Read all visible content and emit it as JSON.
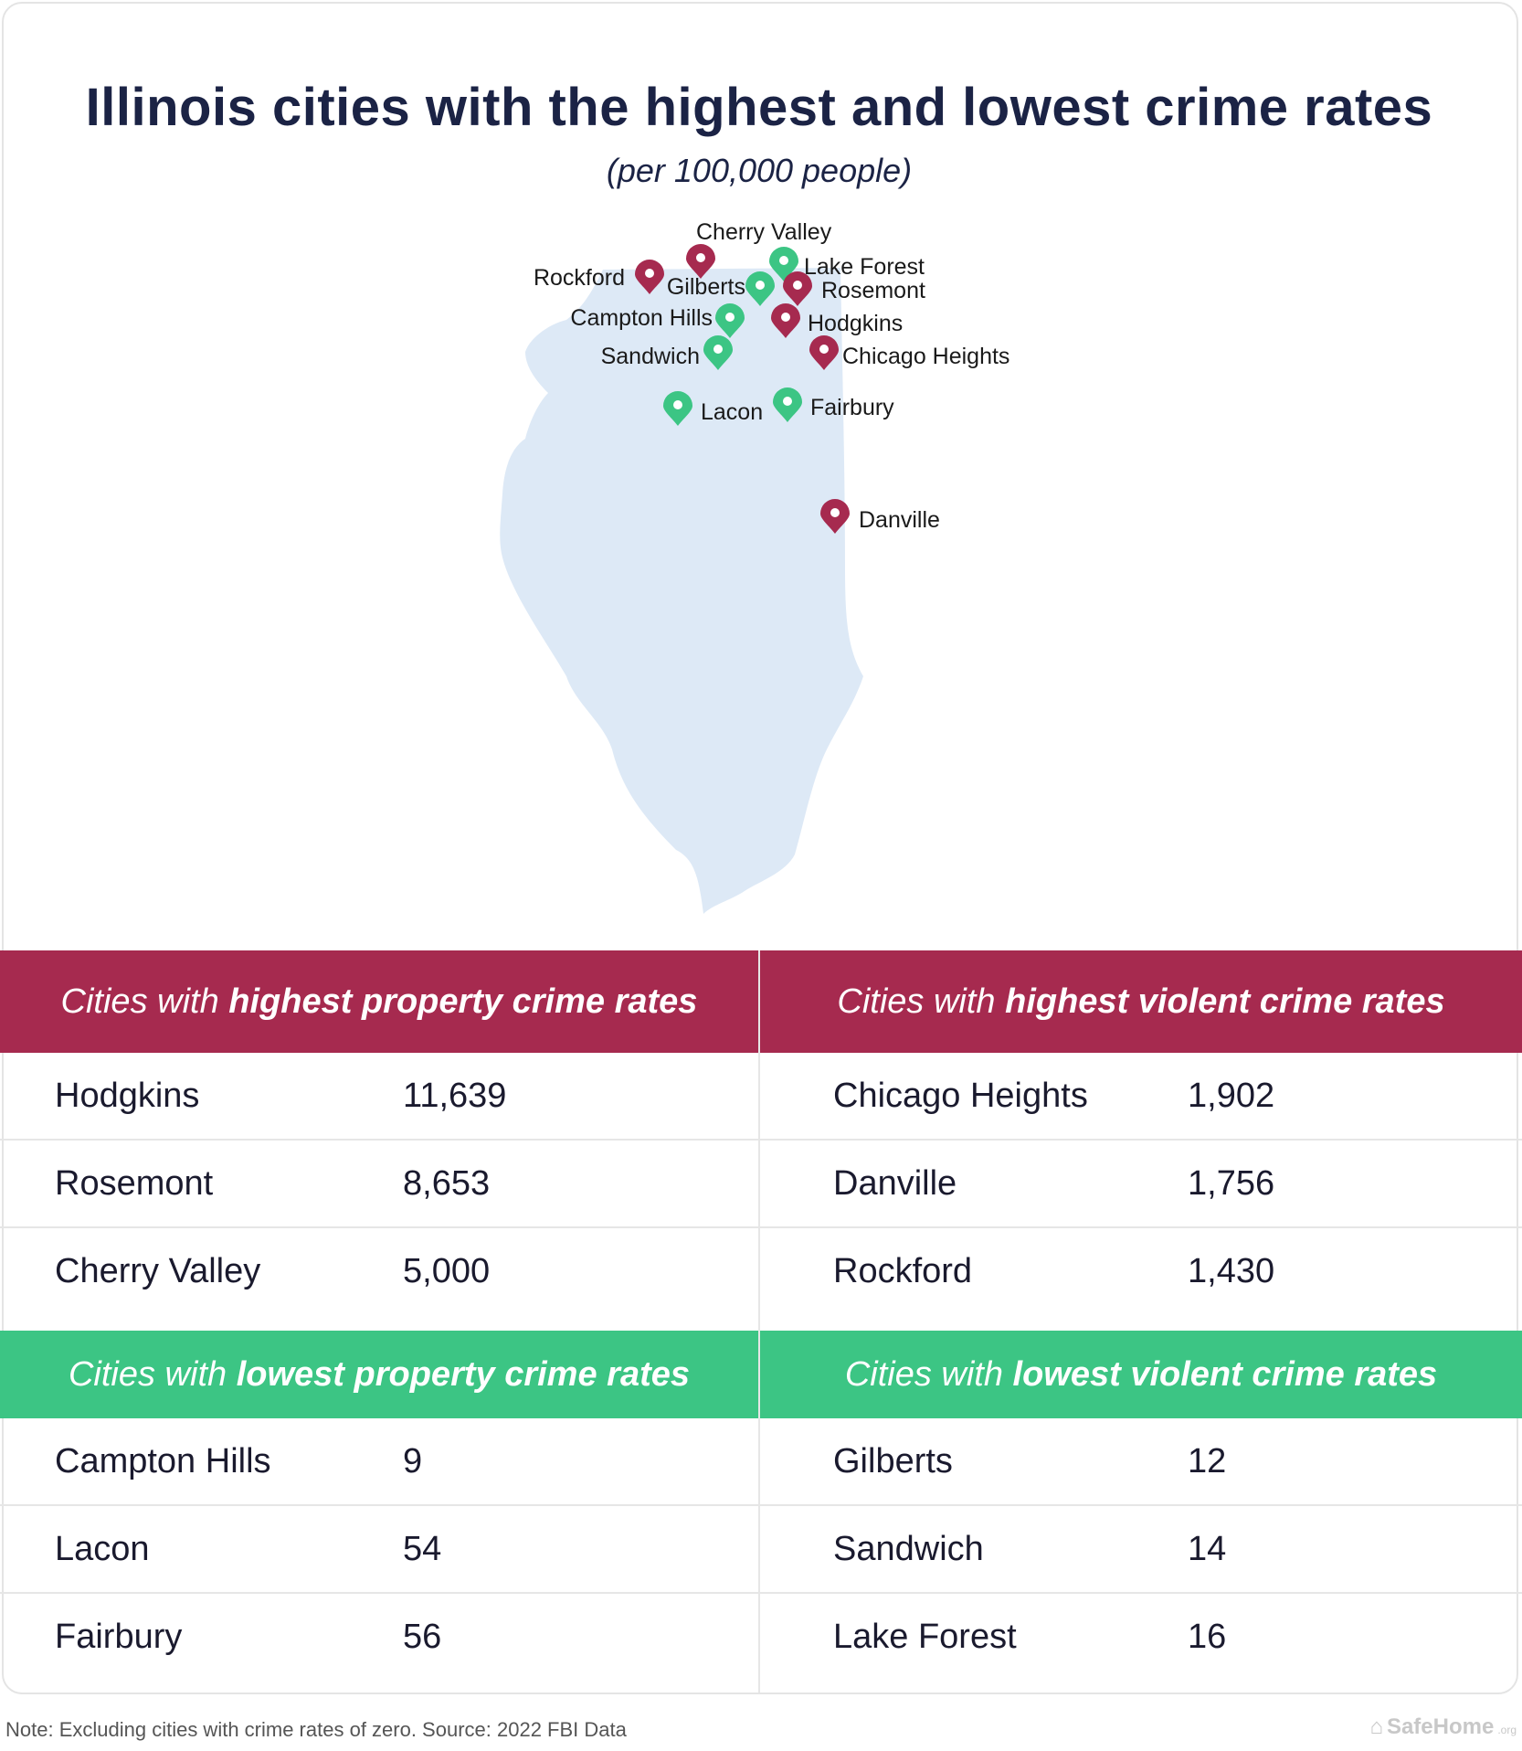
{
  "title": "Illinois cities with the highest and lowest crime rates",
  "subtitle": "(per 100,000 people)",
  "colors": {
    "high": "#a62a4f",
    "low": "#3cc584",
    "state": "#dde9f6"
  },
  "map": {
    "pins": [
      {
        "name": "Cherry Valley",
        "type": "high"
      },
      {
        "name": "Rockford",
        "type": "high"
      },
      {
        "name": "Lake Forest",
        "type": "low"
      },
      {
        "name": "Gilberts",
        "type": "low"
      },
      {
        "name": "Rosemont",
        "type": "high"
      },
      {
        "name": "Campton Hills",
        "type": "low"
      },
      {
        "name": "Hodgkins",
        "type": "high"
      },
      {
        "name": "Sandwich",
        "type": "low"
      },
      {
        "name": "Chicago Heights",
        "type": "high"
      },
      {
        "name": "Lacon",
        "type": "low"
      },
      {
        "name": "Fairbury",
        "type": "low"
      },
      {
        "name": "Danville",
        "type": "high"
      }
    ]
  },
  "tables": {
    "high_property": {
      "header_pre": "Cities with ",
      "header_bold": "highest property crime rates",
      "rows": [
        {
          "city": "Hodgkins",
          "value": "11,639"
        },
        {
          "city": "Rosemont",
          "value": "8,653"
        },
        {
          "city": "Cherry Valley",
          "value": "5,000"
        }
      ]
    },
    "high_violent": {
      "header_pre": "Cities with ",
      "header_bold": "highest violent crime rates",
      "rows": [
        {
          "city": "Chicago Heights",
          "value": "1,902"
        },
        {
          "city": "Danville",
          "value": "1,756"
        },
        {
          "city": "Rockford",
          "value": "1,430"
        }
      ]
    },
    "low_property": {
      "header_pre": "Cities with ",
      "header_bold": "lowest property crime rates",
      "rows": [
        {
          "city": "Campton Hills",
          "value": "9"
        },
        {
          "city": "Lacon",
          "value": "54"
        },
        {
          "city": "Fairbury",
          "value": "56"
        }
      ]
    },
    "low_violent": {
      "header_pre": "Cities with ",
      "header_bold": "lowest violent crime rates",
      "rows": [
        {
          "city": "Gilberts",
          "value": "12"
        },
        {
          "city": "Sandwich",
          "value": "14"
        },
        {
          "city": "Lake Forest",
          "value": "16"
        }
      ]
    }
  },
  "footer": {
    "note": "Note: Excluding cities with crime rates of zero. Source: 2022 FBI Data",
    "logo": "SafeHome",
    "logo_suffix": ".org"
  }
}
